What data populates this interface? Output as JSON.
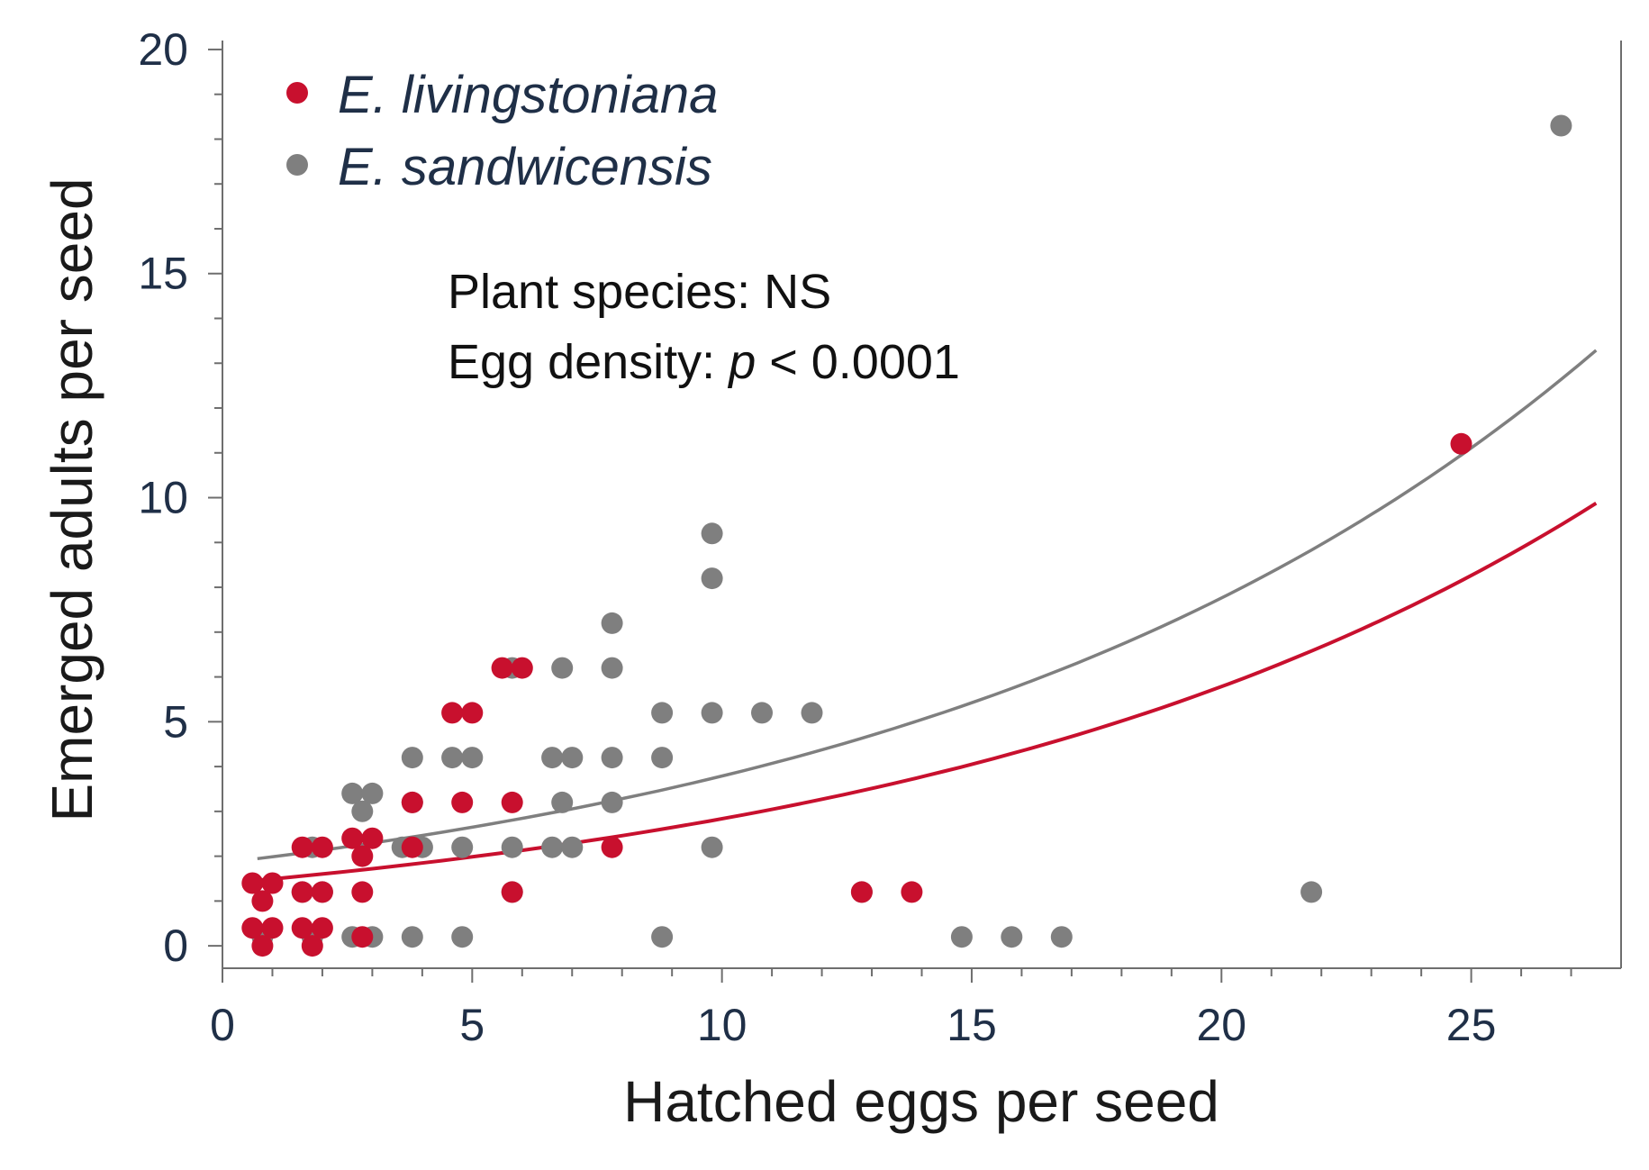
{
  "chart_data": {
    "type": "scatter",
    "title": "",
    "xlabel": "Hatched eggs per seed",
    "ylabel": "Emerged adults per seed",
    "xlim": [
      0,
      28
    ],
    "ylim": [
      -0.5,
      20.2
    ],
    "x_ticks": [
      "0",
      "5",
      "10",
      "15",
      "20",
      "25"
    ],
    "y_ticks": [
      "0",
      "5",
      "10",
      "15",
      "20"
    ],
    "grid": false,
    "legend_position": "top-left",
    "colors": {
      "livingstoniana": "#c8102e",
      "sandwicensis": "#7f7f7f",
      "axis": "#6e6e6e"
    },
    "annotations": {
      "line1": "Plant species: NS",
      "line2_prefix": "Egg density: ",
      "line2_p": "p",
      "line2_suffix": " < 0.0001"
    },
    "series": [
      {
        "name": "E. livingstoniana",
        "color": "#c8102e",
        "points": [
          [
            0.6,
            1.4
          ],
          [
            0.8,
            1.0
          ],
          [
            1.0,
            1.4
          ],
          [
            0.6,
            0.4
          ],
          [
            1.0,
            0.4
          ],
          [
            0.8,
            0.0
          ],
          [
            1.6,
            2.2
          ],
          [
            2.0,
            2.2
          ],
          [
            1.6,
            1.2
          ],
          [
            2.0,
            1.2
          ],
          [
            1.6,
            0.4
          ],
          [
            2.0,
            0.4
          ],
          [
            1.8,
            0.0
          ],
          [
            2.6,
            2.4
          ],
          [
            3.0,
            2.4
          ],
          [
            2.8,
            2.0
          ],
          [
            2.8,
            1.2
          ],
          [
            2.8,
            0.2
          ],
          [
            3.8,
            3.2
          ],
          [
            3.8,
            2.2
          ],
          [
            4.6,
            5.2
          ],
          [
            5.0,
            5.2
          ],
          [
            4.8,
            3.2
          ],
          [
            5.6,
            6.2
          ],
          [
            6.0,
            6.2
          ],
          [
            5.8,
            3.2
          ],
          [
            5.8,
            1.2
          ],
          [
            7.8,
            2.2
          ],
          [
            12.8,
            1.2
          ],
          [
            13.8,
            1.2
          ],
          [
            24.8,
            11.2
          ]
        ],
        "fit": {
          "type": "exponential",
          "a": 1.39,
          "b": 0.0713,
          "x_range": [
            0.7,
            27.5
          ]
        }
      },
      {
        "name": "E. sandwicensis",
        "color": "#7f7f7f",
        "points": [
          [
            0.8,
            0.2
          ],
          [
            1.8,
            2.2
          ],
          [
            1.6,
            1.2
          ],
          [
            2.0,
            1.2
          ],
          [
            1.8,
            0.2
          ],
          [
            2.6,
            3.4
          ],
          [
            3.0,
            3.4
          ],
          [
            2.8,
            3.0
          ],
          [
            2.6,
            0.2
          ],
          [
            3.0,
            0.2
          ],
          [
            3.8,
            4.2
          ],
          [
            3.8,
            3.2
          ],
          [
            3.6,
            2.2
          ],
          [
            4.0,
            2.2
          ],
          [
            3.8,
            0.2
          ],
          [
            4.6,
            4.2
          ],
          [
            5.0,
            4.2
          ],
          [
            4.8,
            2.2
          ],
          [
            4.8,
            0.2
          ],
          [
            5.8,
            6.2
          ],
          [
            5.8,
            2.2
          ],
          [
            5.8,
            1.2
          ],
          [
            6.6,
            4.2
          ],
          [
            7.0,
            4.2
          ],
          [
            6.8,
            6.2
          ],
          [
            6.8,
            3.2
          ],
          [
            6.6,
            2.2
          ],
          [
            7.0,
            2.2
          ],
          [
            7.8,
            7.2
          ],
          [
            7.8,
            6.2
          ],
          [
            7.8,
            4.2
          ],
          [
            7.8,
            3.2
          ],
          [
            8.8,
            5.2
          ],
          [
            8.8,
            4.2
          ],
          [
            8.8,
            0.2
          ],
          [
            9.8,
            9.2
          ],
          [
            9.8,
            8.2
          ],
          [
            9.8,
            5.2
          ],
          [
            9.8,
            2.2
          ],
          [
            10.8,
            5.2
          ],
          [
            11.8,
            5.2
          ],
          [
            12.8,
            1.2
          ],
          [
            14.8,
            0.2
          ],
          [
            15.8,
            0.2
          ],
          [
            16.8,
            0.2
          ],
          [
            21.8,
            1.2
          ],
          [
            26.8,
            18.3
          ]
        ],
        "fit": {
          "type": "exponential",
          "a": 1.85,
          "b": 0.0717,
          "x_range": [
            0.7,
            27.5
          ]
        }
      }
    ]
  }
}
